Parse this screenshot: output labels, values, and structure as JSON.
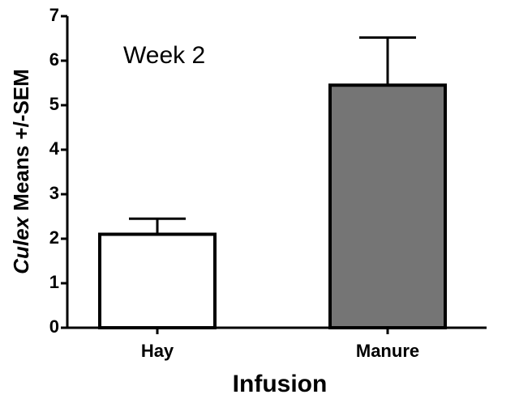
{
  "chart_data": {
    "type": "bar",
    "annotation": "Week 2",
    "y_label_italic": "Culex",
    "y_label": "Means +/-SEM",
    "x_label": "Infusion",
    "categories": [
      "Hay",
      "Manure"
    ],
    "values": [
      2.1,
      5.45
    ],
    "errors": [
      0.35,
      1.07
    ],
    "colors": [
      "#ffffff",
      "#757575"
    ],
    "ylim": [
      0,
      7
    ],
    "yticks": [
      0,
      1,
      2,
      3,
      4,
      5,
      6,
      7
    ]
  }
}
